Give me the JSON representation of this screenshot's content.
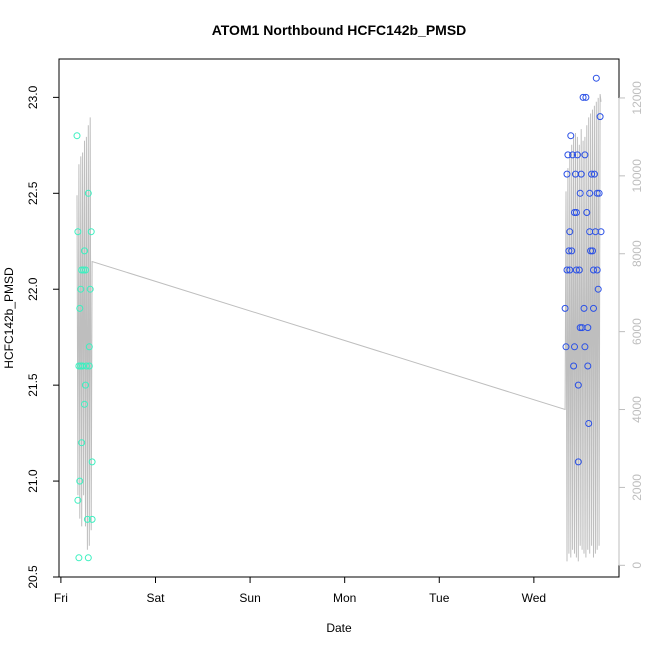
{
  "chart_data": {
    "type": "scatter",
    "title": "ATOM1 Northbound HCFC142b_PMSD",
    "xlabel": "Date",
    "ylabel": "HCFC142b_PMSD",
    "x_ticks": [
      "Fri",
      "Sat",
      "Sun",
      "Mon",
      "Tue",
      "Wed"
    ],
    "xlim": [
      -0.02,
      5.9
    ],
    "ylim": [
      20.5,
      23.2
    ],
    "y_ticks": [
      "20.5",
      "21.0",
      "21.5",
      "22.0",
      "22.5",
      "23.0"
    ],
    "y2lim": [
      -300,
      13000
    ],
    "y2_ticks": [
      "0",
      "2000",
      "4000",
      "6000",
      "8000",
      "10000",
      "12000"
    ],
    "grid": false,
    "colors": {
      "early": "#3cf0c0",
      "late": "#2a50e6",
      "line": "#bebebe"
    },
    "series": [
      {
        "values": [
          [
            0.17,
            22.8
          ],
          [
            0.18,
            22.3
          ],
          [
            0.18,
            20.9
          ],
          [
            0.19,
            20.6
          ],
          [
            0.19,
            21.6
          ],
          [
            0.2,
            21.0
          ],
          [
            0.2,
            21.9
          ],
          [
            0.21,
            22.0
          ],
          [
            0.21,
            21.6
          ],
          [
            0.22,
            21.2
          ],
          [
            0.22,
            22.1
          ],
          [
            0.23,
            21.6
          ],
          [
            0.24,
            22.1
          ],
          [
            0.25,
            21.4
          ],
          [
            0.25,
            22.2
          ],
          [
            0.26,
            21.5
          ],
          [
            0.26,
            22.1
          ],
          [
            0.27,
            21.6
          ],
          [
            0.28,
            20.8
          ],
          [
            0.29,
            22.5
          ],
          [
            0.29,
            20.6
          ],
          [
            0.3,
            21.7
          ],
          [
            0.3,
            21.6
          ],
          [
            0.31,
            22.0
          ],
          [
            0.32,
            22.3
          ],
          [
            0.33,
            21.1
          ],
          [
            0.33,
            20.8
          ]
        ]
      },
      {
        "values": [
          [
            5.33,
            21.9
          ],
          [
            5.34,
            21.7
          ],
          [
            5.35,
            22.6
          ],
          [
            5.35,
            22.1
          ],
          [
            5.36,
            22.7
          ],
          [
            5.37,
            22.2
          ],
          [
            5.38,
            22.3
          ],
          [
            5.38,
            22.1
          ],
          [
            5.39,
            22.8
          ],
          [
            5.4,
            22.2
          ],
          [
            5.41,
            22.7
          ],
          [
            5.42,
            21.6
          ],
          [
            5.43,
            22.4
          ],
          [
            5.43,
            21.7
          ],
          [
            5.44,
            22.6
          ],
          [
            5.45,
            22.4
          ],
          [
            5.45,
            22.1
          ],
          [
            5.46,
            22.7
          ],
          [
            5.47,
            21.1
          ],
          [
            5.47,
            21.5
          ],
          [
            5.48,
            22.1
          ],
          [
            5.49,
            21.8
          ],
          [
            5.49,
            22.5
          ],
          [
            5.5,
            22.6
          ],
          [
            5.51,
            21.8
          ],
          [
            5.52,
            23.0
          ],
          [
            5.53,
            21.9
          ],
          [
            5.54,
            22.7
          ],
          [
            5.54,
            21.7
          ],
          [
            5.55,
            23.0
          ],
          [
            5.56,
            22.4
          ],
          [
            5.57,
            21.6
          ],
          [
            5.57,
            21.8
          ],
          [
            5.58,
            21.3
          ],
          [
            5.59,
            22.5
          ],
          [
            5.59,
            22.3
          ],
          [
            5.6,
            22.2
          ],
          [
            5.61,
            22.6
          ],
          [
            5.62,
            22.2
          ],
          [
            5.63,
            21.9
          ],
          [
            5.63,
            22.1
          ],
          [
            5.64,
            22.6
          ],
          [
            5.65,
            22.3
          ],
          [
            5.66,
            23.1
          ],
          [
            5.67,
            22.1
          ],
          [
            5.67,
            22.5
          ],
          [
            5.68,
            22.0
          ],
          [
            5.69,
            22.5
          ],
          [
            5.7,
            22.9
          ],
          [
            5.71,
            22.3
          ]
        ]
      }
    ],
    "secondary_line": {
      "x": [
        0.17,
        0.18,
        0.19,
        0.2,
        0.21,
        0.22,
        0.23,
        0.24,
        0.25,
        0.26,
        0.27,
        0.28,
        0.29,
        0.3,
        0.31,
        0.32,
        0.33,
        5.33,
        5.34,
        5.35,
        5.36,
        5.37,
        5.38,
        5.39,
        5.4,
        5.41,
        5.42,
        5.43,
        5.44,
        5.45,
        5.46,
        5.47,
        5.48,
        5.49,
        5.5,
        5.51,
        5.52,
        5.53,
        5.54,
        5.55,
        5.56,
        5.57,
        5.58,
        5.59,
        5.6,
        5.61,
        5.62,
        5.63,
        5.64,
        5.65,
        5.66,
        5.67,
        5.68,
        5.69,
        5.7,
        5.71
      ],
      "y": [
        9500,
        1800,
        10300,
        1200,
        10500,
        1000,
        10600,
        1800,
        10900,
        1000,
        11000,
        400,
        11300,
        500,
        11500,
        900,
        7800,
        4000,
        9600,
        100,
        10200,
        300,
        10600,
        200,
        10800,
        400,
        11000,
        300,
        11100,
        200,
        11000,
        100,
        10800,
        500,
        11200,
        400,
        10900,
        300,
        11000,
        200,
        11300,
        400,
        11500,
        300,
        11600,
        500,
        11700,
        200,
        11800,
        300,
        11900,
        400,
        12000,
        500,
        12100,
        11900
      ]
    }
  }
}
